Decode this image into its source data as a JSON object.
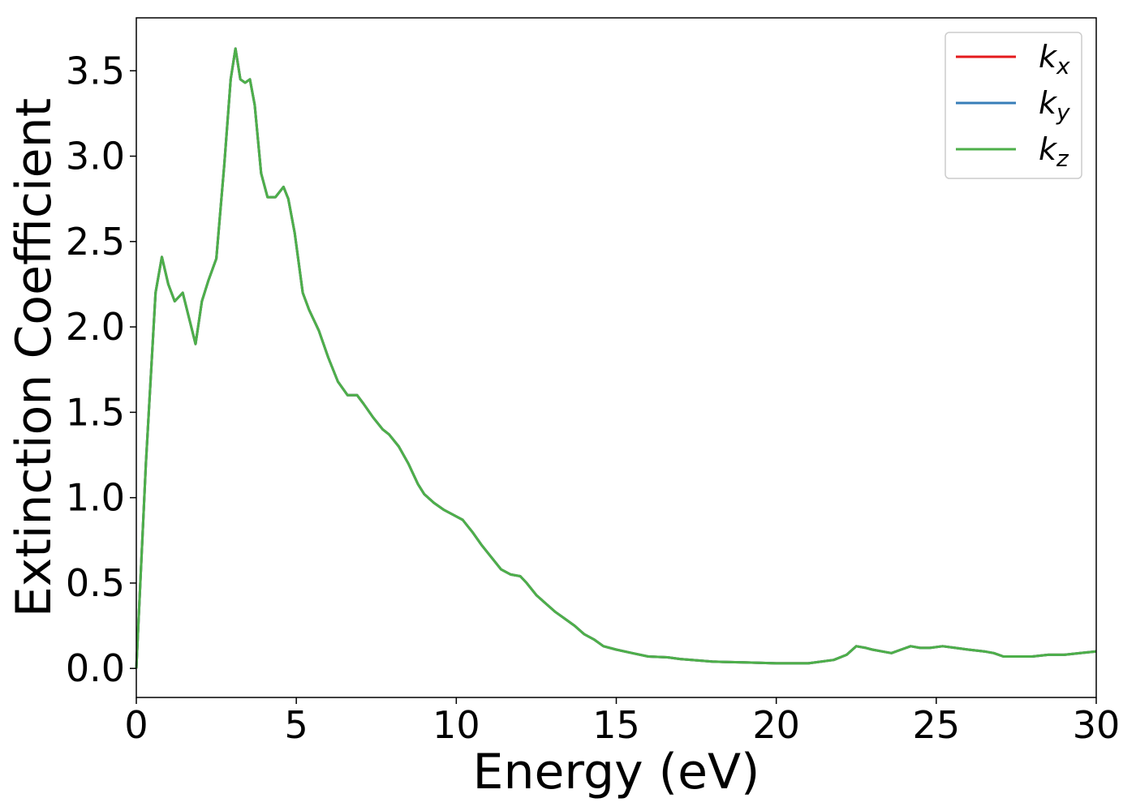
{
  "chart_data": {
    "type": "line",
    "title": "",
    "xlabel": "Energy (eV)",
    "ylabel": "Extinction Coefficient",
    "xlim": [
      0,
      30
    ],
    "ylim": [
      -0.17,
      3.81
    ],
    "xticks": [
      0,
      5,
      10,
      15,
      20,
      25,
      30
    ],
    "xtick_labels": [
      "0",
      "5",
      "10",
      "15",
      "20",
      "25",
      "30"
    ],
    "yticks": [
      0.0,
      0.5,
      1.0,
      1.5,
      2.0,
      2.5,
      3.0,
      3.5
    ],
    "ytick_labels": [
      "0.0",
      "0.5",
      "1.0",
      "1.5",
      "2.0",
      "2.5",
      "3.0",
      "3.5"
    ],
    "grid": false,
    "legend_position": "top-right",
    "x": [
      0,
      0.3,
      0.6,
      0.8,
      1.0,
      1.2,
      1.45,
      1.65,
      1.85,
      2.05,
      2.25,
      2.5,
      2.75,
      2.95,
      3.1,
      3.25,
      3.4,
      3.55,
      3.7,
      3.9,
      4.1,
      4.35,
      4.6,
      4.75,
      4.95,
      5.2,
      5.4,
      5.7,
      6.0,
      6.3,
      6.6,
      6.9,
      7.1,
      7.4,
      7.7,
      7.9,
      8.2,
      8.5,
      8.8,
      9.0,
      9.3,
      9.6,
      9.9,
      10.2,
      10.5,
      10.8,
      11.1,
      11.4,
      11.7,
      12.0,
      12.2,
      12.5,
      12.8,
      13.1,
      13.4,
      13.7,
      14.0,
      14.3,
      14.6,
      15.0,
      15.5,
      16.0,
      16.6,
      17.0,
      18.0,
      19.0,
      20.0,
      21.0,
      21.8,
      22.2,
      22.5,
      22.8,
      23.0,
      23.3,
      23.6,
      23.9,
      24.2,
      24.5,
      24.8,
      25.2,
      25.6,
      26.0,
      26.5,
      26.8,
      27.1,
      27.5,
      28.0,
      28.5,
      29.0,
      29.5,
      30.0
    ],
    "series": [
      {
        "name": "k_x",
        "color": "#e41a1c",
        "values": [
          0.0,
          1.2,
          2.2,
          2.41,
          2.25,
          2.15,
          2.2,
          2.05,
          1.9,
          2.15,
          2.27,
          2.4,
          2.95,
          3.45,
          3.63,
          3.45,
          3.43,
          3.45,
          3.3,
          2.9,
          2.76,
          2.76,
          2.82,
          2.75,
          2.55,
          2.2,
          2.1,
          1.98,
          1.82,
          1.68,
          1.6,
          1.6,
          1.55,
          1.47,
          1.4,
          1.37,
          1.3,
          1.2,
          1.08,
          1.02,
          0.97,
          0.93,
          0.9,
          0.87,
          0.8,
          0.72,
          0.65,
          0.58,
          0.55,
          0.54,
          0.5,
          0.43,
          0.38,
          0.33,
          0.29,
          0.25,
          0.2,
          0.17,
          0.13,
          0.11,
          0.09,
          0.07,
          0.065,
          0.055,
          0.04,
          0.035,
          0.03,
          0.03,
          0.05,
          0.08,
          0.13,
          0.12,
          0.11,
          0.1,
          0.09,
          0.11,
          0.13,
          0.12,
          0.12,
          0.13,
          0.12,
          0.11,
          0.1,
          0.09,
          0.07,
          0.07,
          0.07,
          0.08,
          0.08,
          0.09,
          0.1
        ]
      },
      {
        "name": "k_y",
        "color": "#377eb8",
        "values": [
          0.0,
          1.2,
          2.2,
          2.41,
          2.25,
          2.15,
          2.2,
          2.05,
          1.9,
          2.15,
          2.27,
          2.4,
          2.95,
          3.45,
          3.63,
          3.45,
          3.43,
          3.45,
          3.3,
          2.9,
          2.76,
          2.76,
          2.82,
          2.75,
          2.55,
          2.2,
          2.1,
          1.98,
          1.82,
          1.68,
          1.6,
          1.6,
          1.55,
          1.47,
          1.4,
          1.37,
          1.3,
          1.2,
          1.08,
          1.02,
          0.97,
          0.93,
          0.9,
          0.87,
          0.8,
          0.72,
          0.65,
          0.58,
          0.55,
          0.54,
          0.5,
          0.43,
          0.38,
          0.33,
          0.29,
          0.25,
          0.2,
          0.17,
          0.13,
          0.11,
          0.09,
          0.07,
          0.065,
          0.055,
          0.04,
          0.035,
          0.03,
          0.03,
          0.05,
          0.08,
          0.13,
          0.12,
          0.11,
          0.1,
          0.09,
          0.11,
          0.13,
          0.12,
          0.12,
          0.13,
          0.12,
          0.11,
          0.1,
          0.09,
          0.07,
          0.07,
          0.07,
          0.08,
          0.08,
          0.09,
          0.1
        ]
      },
      {
        "name": "k_z",
        "color": "#4daf4a",
        "values": [
          0.0,
          1.2,
          2.2,
          2.41,
          2.25,
          2.15,
          2.2,
          2.05,
          1.9,
          2.15,
          2.27,
          2.4,
          2.95,
          3.45,
          3.63,
          3.45,
          3.43,
          3.45,
          3.3,
          2.9,
          2.76,
          2.76,
          2.82,
          2.75,
          2.55,
          2.2,
          2.1,
          1.98,
          1.82,
          1.68,
          1.6,
          1.6,
          1.55,
          1.47,
          1.4,
          1.37,
          1.3,
          1.2,
          1.08,
          1.02,
          0.97,
          0.93,
          0.9,
          0.87,
          0.8,
          0.72,
          0.65,
          0.58,
          0.55,
          0.54,
          0.5,
          0.43,
          0.38,
          0.33,
          0.29,
          0.25,
          0.2,
          0.17,
          0.13,
          0.11,
          0.09,
          0.07,
          0.065,
          0.055,
          0.04,
          0.035,
          0.03,
          0.03,
          0.05,
          0.08,
          0.13,
          0.12,
          0.11,
          0.1,
          0.09,
          0.11,
          0.13,
          0.12,
          0.12,
          0.13,
          0.12,
          0.11,
          0.1,
          0.09,
          0.07,
          0.07,
          0.07,
          0.08,
          0.08,
          0.09,
          0.1
        ]
      }
    ],
    "legend": [
      {
        "base": "k",
        "sub": "x",
        "color": "#e41a1c"
      },
      {
        "base": "k",
        "sub": "y",
        "color": "#377eb8"
      },
      {
        "base": "k",
        "sub": "z",
        "color": "#4daf4a"
      }
    ]
  }
}
